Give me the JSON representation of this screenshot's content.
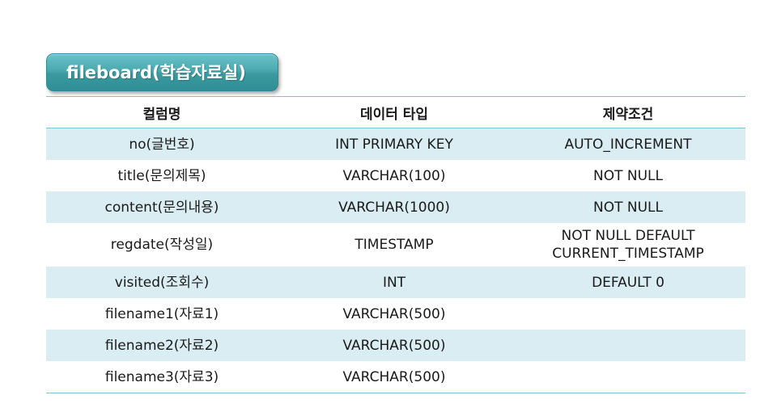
{
  "title": "fileboard(학습자료실)",
  "colors": {
    "badge": "#3b999f",
    "row_stripe": "#daedf2",
    "rule": "#7fc4ca"
  },
  "table": {
    "headers": {
      "name": "컬럼명",
      "type": "데이터 타입",
      "constraint": "제약조건"
    },
    "rows": [
      {
        "name": "no(글번호)",
        "type": "INT PRIMARY KEY",
        "constraint_lines": [
          "AUTO_INCREMENT"
        ]
      },
      {
        "name": "title(문의제목)",
        "type": "VARCHAR(100)",
        "constraint_lines": [
          "NOT NULL"
        ]
      },
      {
        "name": "content(문의내용)",
        "type": "VARCHAR(1000)",
        "constraint_lines": [
          "NOT NULL"
        ]
      },
      {
        "name": "regdate(작성일)",
        "type": "TIMESTAMP",
        "constraint_lines": [
          "NOT NULL DEFAULT",
          "CURRENT_TIMESTAMP"
        ]
      },
      {
        "name": "visited(조회수)",
        "type": "INT",
        "constraint_lines": [
          "DEFAULT 0"
        ]
      },
      {
        "name": "filename1(자료1)",
        "type": "VARCHAR(500)",
        "constraint_lines": [
          ""
        ]
      },
      {
        "name": "filename2(자료2)",
        "type": "VARCHAR(500)",
        "constraint_lines": [
          ""
        ]
      },
      {
        "name": "filename3(자료3)",
        "type": "VARCHAR(500)",
        "constraint_lines": [
          ""
        ]
      }
    ]
  }
}
